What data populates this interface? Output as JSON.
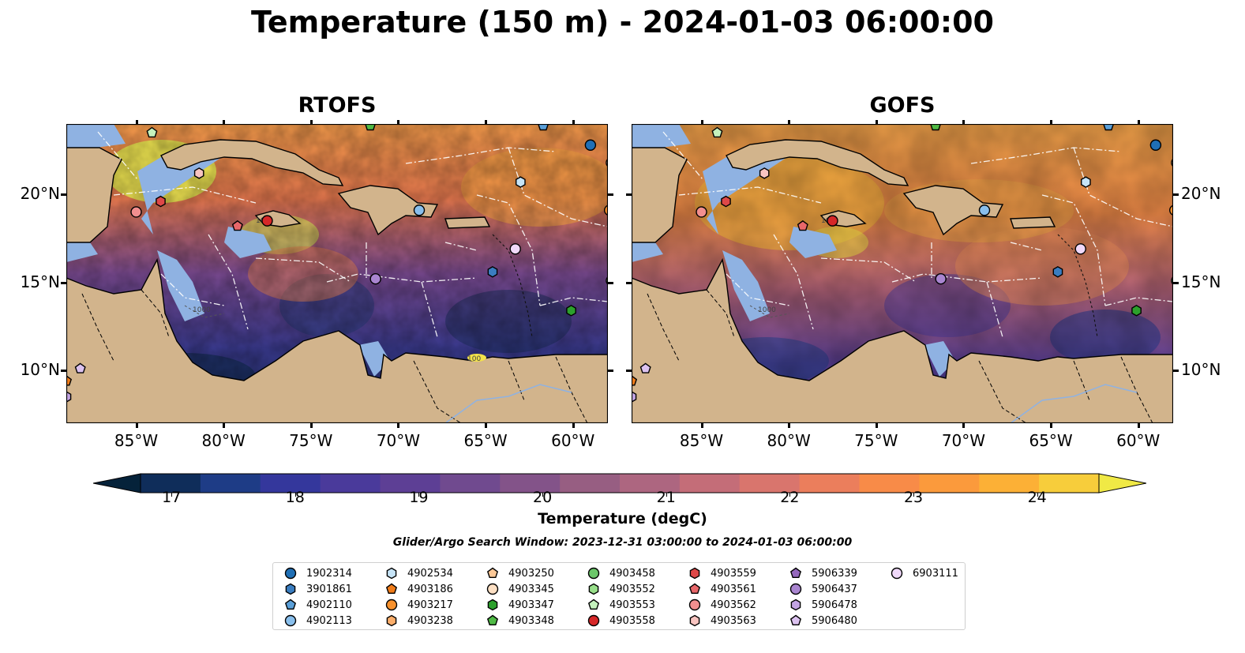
{
  "title": "Temperature (150 m) - 2024-01-03 06:00:00",
  "panels": [
    {
      "title": "RTOFS"
    },
    {
      "title": "GOFS"
    }
  ],
  "axes": {
    "lon_ticks": [
      "85°W",
      "80°W",
      "75°W",
      "70°W",
      "65°W",
      "60°W"
    ],
    "lon_values": [
      -85,
      -80,
      -75,
      -70,
      -65,
      -60
    ],
    "lat_ticks": [
      "10°N",
      "15°N",
      "20°N"
    ],
    "lat_values": [
      10,
      15,
      20
    ],
    "lon_range": [
      -89,
      -58
    ],
    "lat_range": [
      7,
      24
    ]
  },
  "contour_labels": [
    "100",
    "1000"
  ],
  "colorbar": {
    "label": "Temperature (degC)",
    "tick_labels": [
      "17",
      "18",
      "19",
      "20",
      "21",
      "22",
      "23",
      "24"
    ],
    "ticks": [
      17,
      18,
      19,
      20,
      21,
      22,
      23,
      24
    ],
    "range": [
      16.75,
      24.5
    ],
    "extend": "both",
    "colors": [
      "#05223a",
      "#0f2d5a",
      "#1e3c86",
      "#34379c",
      "#4a3a9b",
      "#5d3f95",
      "#704a8f",
      "#835389",
      "#975e82",
      "#ad6680",
      "#c46d78",
      "#d9756d",
      "#eb7e5c",
      "#f88b48",
      "#fb9a3c",
      "#fcb036",
      "#f7cd3b",
      "#f0e945"
    ]
  },
  "search_window": "Glider/Argo Search Window: 2023-12-31 03:00:00 to 2024-01-03 06:00:00",
  "legend": [
    {
      "id": "1902314",
      "marker": "circle",
      "color": "#1f6fb5"
    },
    {
      "id": "3901861",
      "marker": "hexagon",
      "color": "#3a7dc0"
    },
    {
      "id": "4902110",
      "marker": "pentagon",
      "color": "#5a9fd8"
    },
    {
      "id": "4902113",
      "marker": "circle",
      "color": "#89bfec"
    },
    {
      "id": "4902534",
      "marker": "hexagon",
      "color": "#c6e4f7"
    },
    {
      "id": "4903186",
      "marker": "pentagon",
      "color": "#f07c1a"
    },
    {
      "id": "4903217",
      "marker": "circle",
      "color": "#f8912c"
    },
    {
      "id": "4903238",
      "marker": "hexagon",
      "color": "#fbae6b"
    },
    {
      "id": "4903250",
      "marker": "pentagon",
      "color": "#fcc897"
    },
    {
      "id": "4903345",
      "marker": "circle",
      "color": "#fde0c4"
    },
    {
      "id": "4903347",
      "marker": "hexagon",
      "color": "#2ca02c"
    },
    {
      "id": "4903348",
      "marker": "pentagon",
      "color": "#4fba45"
    },
    {
      "id": "4903458",
      "marker": "circle",
      "color": "#6cc76a"
    },
    {
      "id": "4903552",
      "marker": "hexagon",
      "color": "#98df8a"
    },
    {
      "id": "4903553",
      "marker": "pentagon",
      "color": "#c5f2bd"
    },
    {
      "id": "4903558",
      "marker": "circle",
      "color": "#d62728"
    },
    {
      "id": "4903559",
      "marker": "hexagon",
      "color": "#de4848"
    },
    {
      "id": "4903561",
      "marker": "pentagon",
      "color": "#e8676a"
    },
    {
      "id": "4903562",
      "marker": "circle",
      "color": "#f28f8f"
    },
    {
      "id": "4903563",
      "marker": "hexagon",
      "color": "#f8c4c0"
    },
    {
      "id": "5906339",
      "marker": "pentagon",
      "color": "#9467bd"
    },
    {
      "id": "5906437",
      "marker": "circle",
      "color": "#a985d0"
    },
    {
      "id": "5906478",
      "marker": "hexagon",
      "color": "#c3a4e3"
    },
    {
      "id": "5906480",
      "marker": "pentagon",
      "color": "#dcc2f0"
    },
    {
      "id": "6903111",
      "marker": "circle",
      "color": "#f0d9fa"
    }
  ],
  "floats": [
    {
      "lon": -59,
      "lat": 22.8,
      "marker": "circle",
      "color": "#1f6fb5"
    },
    {
      "lon": -57.8,
      "lat": 21.8,
      "marker": "circle",
      "color": "#fde0c4"
    },
    {
      "lon": -63,
      "lat": 20.7,
      "marker": "hexagon",
      "color": "#c6e4f7"
    },
    {
      "lon": -57.9,
      "lat": 19.1,
      "marker": "circle",
      "color": "#f8912c"
    },
    {
      "lon": -68.8,
      "lat": 19.1,
      "marker": "circle",
      "color": "#89bfec"
    },
    {
      "lon": -81.4,
      "lat": 21.2,
      "marker": "hexagon",
      "color": "#f8c4c0"
    },
    {
      "lon": -83.6,
      "lat": 19.6,
      "marker": "hexagon",
      "color": "#de4848"
    },
    {
      "lon": -85,
      "lat": 19,
      "marker": "circle",
      "color": "#f28f8f"
    },
    {
      "lon": -77.5,
      "lat": 18.5,
      "marker": "circle",
      "color": "#d62728"
    },
    {
      "lon": -79.2,
      "lat": 18.2,
      "marker": "pentagon",
      "color": "#e8676a"
    },
    {
      "lon": -63.3,
      "lat": 16.9,
      "marker": "circle",
      "color": "#f0d9fa"
    },
    {
      "lon": -64.6,
      "lat": 15.6,
      "marker": "hexagon",
      "color": "#3a7dc0"
    },
    {
      "lon": -71.3,
      "lat": 15.2,
      "marker": "circle",
      "color": "#a985d0"
    },
    {
      "lon": -57.8,
      "lat": 15.1,
      "marker": "circle",
      "color": "#6cc76a"
    },
    {
      "lon": -60.1,
      "lat": 13.4,
      "marker": "hexagon",
      "color": "#2ca02c"
    },
    {
      "lon": -88.2,
      "lat": 10.1,
      "marker": "pentagon",
      "color": "#dcc2f0"
    },
    {
      "lon": -89,
      "lat": 9.4,
      "marker": "pentagon",
      "color": "#f07c1a"
    },
    {
      "lon": -89,
      "lat": 8.5,
      "marker": "hexagon",
      "color": "#c3a4e3"
    },
    {
      "lon": -84.1,
      "lat": 23.5,
      "marker": "pentagon",
      "color": "#c5f2bd"
    },
    {
      "lon": -71.6,
      "lat": 23.9,
      "marker": "pentagon",
      "color": "#4fba45"
    },
    {
      "lon": -61.7,
      "lat": 23.9,
      "marker": "pentagon",
      "color": "#5a9fd8"
    }
  ]
}
